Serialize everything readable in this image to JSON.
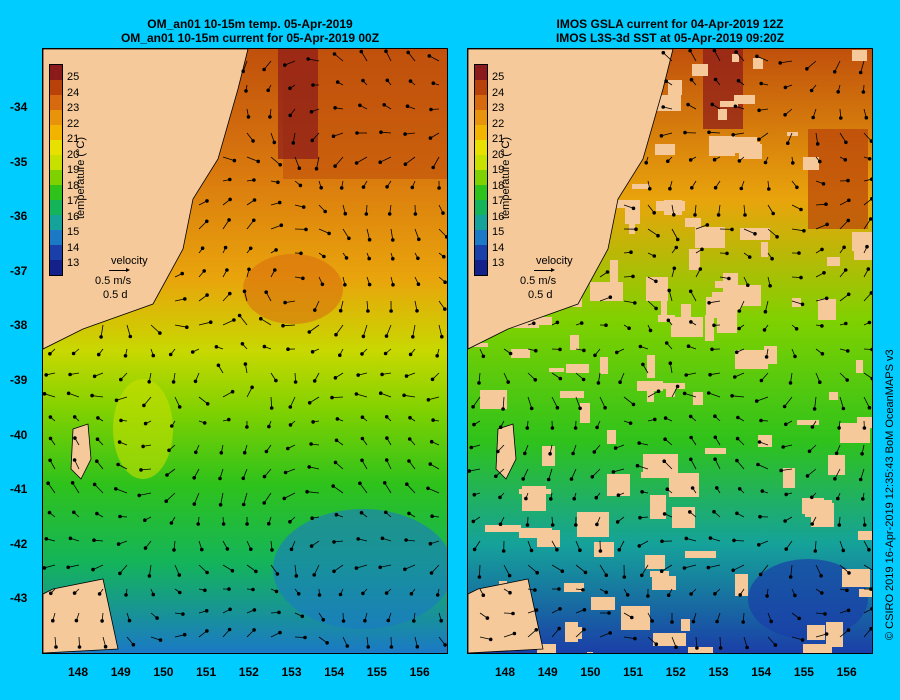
{
  "titles": {
    "left_line1": "OM_an01 10-15m temp. 05-Apr-2019",
    "left_line2": "OM_an01 10-15m current for 05-Apr-2019 00Z",
    "right_line1": "IMOS GSLA current for 04-Apr-2019 12Z",
    "right_line2": "IMOS L3S-3d SST at 05-Apr-2019 09:20Z"
  },
  "colorbar": {
    "label": "temperature (°C)",
    "ticks": [
      "25",
      "24",
      "23",
      "22",
      "21",
      "20",
      "19",
      "18",
      "17",
      "16",
      "15",
      "14",
      "13"
    ],
    "colors": [
      "#8b1a1a",
      "#b8420a",
      "#d7690e",
      "#e8930c",
      "#f2b400",
      "#e8e000",
      "#c8e000",
      "#7fd100",
      "#2fc21b",
      "#14b45a",
      "#15a29a",
      "#1b79c6",
      "#1a3fa8",
      "#14218a"
    ]
  },
  "velocity_legend": {
    "title": "velocity",
    "scale": "0.5 m/s",
    "time": "0.5 d"
  },
  "axes": {
    "lat_ticks": [
      "-34",
      "-35",
      "-36",
      "-37",
      "-38",
      "-39",
      "-40",
      "-41",
      "-42",
      "-43"
    ],
    "lon_ticks": [
      "148",
      "149",
      "150",
      "151",
      "152",
      "153",
      "154",
      "155",
      "156"
    ]
  },
  "credit": "© CSIRO 2019   16-Apr-2019 12:35:43 BoM OceanMAPS v3"
}
